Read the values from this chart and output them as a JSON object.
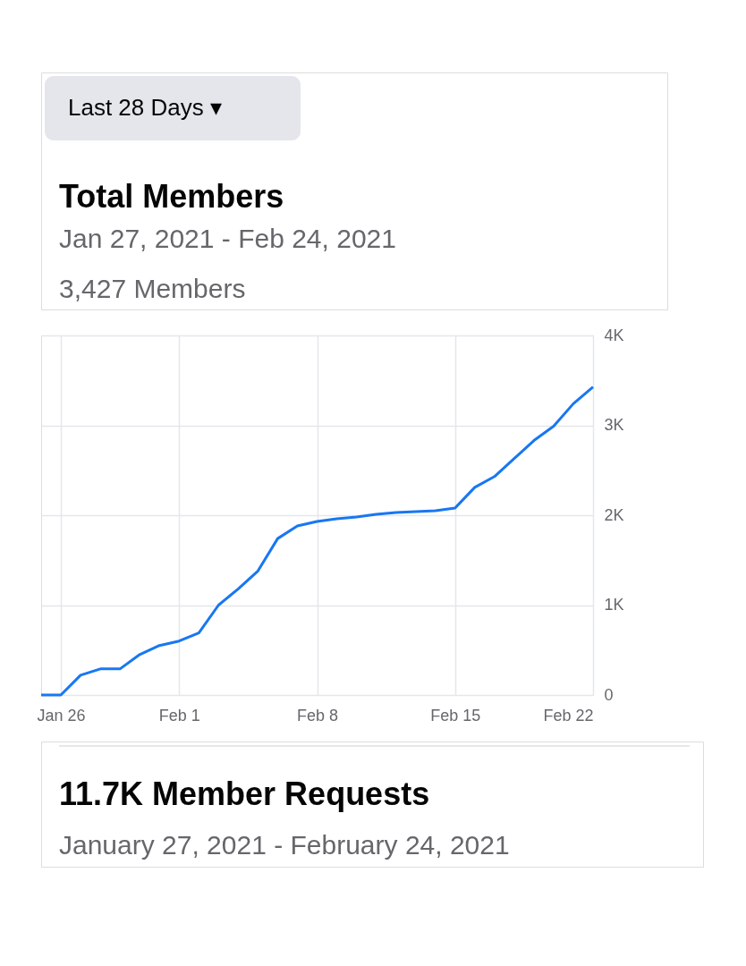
{
  "chart_data": {
    "type": "line",
    "title": "Total Members",
    "subtitle": "Jan 27, 2021 - Feb 24, 2021",
    "annotations": [
      "Last 28 Days ▾",
      "3,427 Members",
      "11.7K Member Requests",
      "January 27, 2021 - February 24, 2021"
    ],
    "x": [
      "2021-01-25",
      "2021-01-26",
      "2021-01-27",
      "2021-01-28",
      "2021-01-29",
      "2021-01-30",
      "2021-01-31",
      "2021-02-01",
      "2021-02-02",
      "2021-02-03",
      "2021-02-04",
      "2021-02-05",
      "2021-02-06",
      "2021-02-07",
      "2021-02-08",
      "2021-02-09",
      "2021-02-10",
      "2021-02-11",
      "2021-02-12",
      "2021-02-13",
      "2021-02-14",
      "2021-02-15",
      "2021-02-16",
      "2021-02-17",
      "2021-02-18",
      "2021-02-19",
      "2021-02-20",
      "2021-02-21",
      "2021-02-22"
    ],
    "series": [
      {
        "color": "#1877f2",
        "values": [
          0,
          0,
          220,
          290,
          290,
          450,
          550,
          600,
          690,
          1000,
          1180,
          1380,
          1740,
          1880,
          1930,
          1960,
          1980,
          2010,
          2030,
          2040,
          2050,
          2080,
          2310,
          2430,
          2630,
          2830,
          2990,
          3240,
          3427
        ]
      }
    ],
    "xlim": [
      "2021-01-25",
      "2021-02-22"
    ],
    "xticks": [
      {
        "value": "2021-01-26",
        "label": "Jan 26"
      },
      {
        "value": "2021-02-01",
        "label": "Feb 1"
      },
      {
        "value": "2021-02-08",
        "label": "Feb 8"
      },
      {
        "value": "2021-02-15",
        "label": "Feb 15"
      },
      {
        "value": "2021-02-22",
        "label": "Feb 22"
      }
    ],
    "ylim": [
      0,
      4000
    ],
    "yticks": [
      {
        "value": 0,
        "label": "0"
      },
      {
        "value": 1000,
        "label": "1K"
      },
      {
        "value": 2000,
        "label": "2K"
      },
      {
        "value": 3000,
        "label": "3K"
      },
      {
        "value": 4000,
        "label": "4K"
      }
    ],
    "grid": true,
    "marker": "none",
    "line_style": "solid"
  }
}
